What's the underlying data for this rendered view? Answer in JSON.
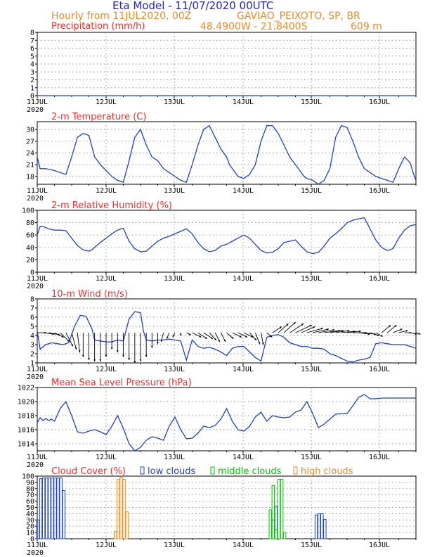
{
  "header": {
    "model_title": "Eta Model - 11/07/2020 00UTC",
    "hourly_line": "Hourly from 11JUL2020, 00Z",
    "station": "GAVIAO_PEIXOTO, SP, BR",
    "coords": "48.4900W - 21.8400S",
    "elevation": "609  m"
  },
  "colors": {
    "title": "#2323d0",
    "orange": "#f08a24",
    "panel_title": "#ff2a2a",
    "line": "#1f3fd0",
    "grid": "#8f8f8f",
    "low_clouds": "#1f3fd0",
    "middle_clouds": "#00c800",
    "high_clouds": "#f08a24"
  },
  "x_axis": {
    "day_labels": [
      "11JUL",
      "12JUL",
      "13JUL",
      "14JUL",
      "15JUL",
      "16JUL"
    ],
    "year_label": "2020"
  },
  "chart_data": [
    {
      "id": "precip",
      "type": "line",
      "title": "Precipitation (mm/h)",
      "ylim": [
        0,
        8
      ],
      "yticks": [
        0,
        1,
        2,
        3,
        4,
        5,
        6,
        7,
        8
      ],
      "xlim_hours": [
        0,
        132
      ],
      "series": [
        {
          "name": "precipitation",
          "x": [
            0,
            132
          ],
          "values": [
            0,
            0
          ]
        }
      ]
    },
    {
      "id": "temp",
      "type": "line",
      "title": "2-m Temperature (C)",
      "ylim": [
        16,
        32
      ],
      "yticks": [
        18,
        21,
        24,
        27,
        30
      ],
      "xlim_hours": [
        0,
        132
      ],
      "series": [
        {
          "name": "temperature",
          "x": [
            0,
            1,
            3,
            6,
            10,
            12,
            14,
            16,
            18,
            20,
            21,
            22,
            24,
            26,
            28,
            30,
            32,
            34,
            36,
            38,
            40,
            42,
            43,
            44,
            45,
            46,
            48,
            50,
            52,
            54,
            56,
            58,
            60,
            62,
            64,
            66,
            67,
            68,
            69,
            70,
            72,
            74,
            76,
            78,
            80,
            82,
            84,
            86,
            88,
            90,
            91,
            92,
            93,
            94,
            96,
            98,
            100,
            102,
            104,
            106,
            108,
            110,
            112,
            114,
            115,
            116,
            117,
            118,
            120,
            122,
            124,
            126,
            128,
            130,
            131,
            132
          ],
          "values": [
            23,
            20,
            20,
            19.5,
            18.5,
            23,
            28,
            29,
            28.5,
            23,
            22,
            21,
            19.5,
            18,
            17,
            16.5,
            22,
            28,
            30,
            26,
            23,
            22,
            21,
            20,
            19.5,
            19,
            18,
            17,
            16.5,
            21,
            26,
            30,
            31,
            28,
            25,
            23,
            21,
            20,
            19,
            18,
            17.5,
            18.5,
            21,
            27,
            31,
            31,
            29,
            26,
            23,
            21,
            20,
            19,
            18,
            17.5,
            17,
            16,
            17,
            20,
            28,
            31,
            30.5,
            27,
            23,
            20,
            19.5,
            19,
            18.5,
            18,
            17.5,
            17,
            16.5,
            20,
            23,
            21.5,
            19,
            17
          ]
        }
      ]
    },
    {
      "id": "rh",
      "type": "line",
      "title": "2-m Relative Humidity (%)",
      "ylim": [
        0,
        100
      ],
      "yticks": [
        0,
        20,
        40,
        60,
        80,
        100
      ],
      "xlim_hours": [
        0,
        132
      ],
      "series": [
        {
          "name": "relative_humidity",
          "x": [
            0,
            1,
            2,
            4,
            6,
            8,
            10,
            12,
            14,
            16,
            18,
            19,
            20,
            22,
            24,
            26,
            28,
            30,
            32,
            34,
            36,
            38,
            40,
            42,
            44,
            46,
            48,
            50,
            52,
            54,
            56,
            58,
            60,
            62,
            64,
            66,
            68,
            70,
            72,
            74,
            76,
            78,
            80,
            82,
            84,
            86,
            88,
            90,
            92,
            94,
            96,
            98,
            100,
            102,
            104,
            106,
            108,
            110,
            112,
            114,
            116,
            118,
            120,
            122,
            124,
            126,
            128,
            130,
            132
          ],
          "values": [
            60,
            74,
            74,
            70,
            68,
            68,
            67,
            55,
            43,
            36,
            34,
            36,
            40,
            48,
            55,
            62,
            68,
            71,
            50,
            38,
            33,
            34,
            42,
            50,
            55,
            58,
            62,
            66,
            70,
            62,
            48,
            38,
            33,
            35,
            42,
            45,
            50,
            55,
            60,
            55,
            45,
            35,
            31,
            32,
            38,
            48,
            50,
            52,
            42,
            33,
            30,
            32,
            42,
            55,
            62,
            70,
            80,
            84,
            86,
            88,
            70,
            52,
            40,
            35,
            38,
            55,
            68,
            75,
            77
          ]
        }
      ]
    },
    {
      "id": "wind",
      "type": "line",
      "title": "10-m Wind (m/s)",
      "ylim": [
        1,
        8
      ],
      "yticks": [
        1,
        2,
        3,
        4,
        5,
        6,
        7,
        8
      ],
      "xlim_hours": [
        0,
        132
      ],
      "series": [
        {
          "name": "wind_speed",
          "x": [
            0,
            1,
            3,
            5,
            7,
            9,
            11,
            13,
            15,
            17,
            19,
            20,
            22,
            24,
            26,
            28,
            30,
            32,
            34,
            36,
            37,
            38,
            40,
            42,
            44,
            46,
            48,
            50,
            52,
            54,
            55,
            56,
            58,
            60,
            62,
            64,
            66,
            68,
            70,
            72,
            74,
            76,
            78,
            80,
            82,
            84,
            86,
            88,
            90,
            92,
            94,
            96,
            98,
            100,
            102,
            104,
            106,
            108,
            110,
            112,
            114,
            116,
            118,
            120,
            122,
            124,
            126,
            128,
            130,
            132
          ],
          "values": [
            4.5,
            2.5,
            3,
            3.2,
            3.1,
            3,
            3.2,
            5,
            6.2,
            6.1,
            4.8,
            3.5,
            3.4,
            3.3,
            3.3,
            3.5,
            3.4,
            5.8,
            6.6,
            6.5,
            4.5,
            3.5,
            3.4,
            3.5,
            3.5,
            3.6,
            3.5,
            3.4,
            1.3,
            3.5,
            3.2,
            2.8,
            2.6,
            2.7,
            2.5,
            2.2,
            1.8,
            2.6,
            2.8,
            2.8,
            2.2,
            1.6,
            1.2,
            3.8,
            4,
            4.1,
            3.8,
            3.2,
            3,
            2.8,
            2.8,
            2.6,
            2.6,
            2.5,
            2,
            1.8,
            1.5,
            1.2,
            1.1,
            1.3,
            1.4,
            1.6,
            3.1,
            3.2,
            3.1,
            3,
            3,
            3,
            2.8,
            2.6
          ]
        }
      ],
      "arrows": {
        "note": "wind vector barbs drawn along the speed axis",
        "hours": [
          0,
          2,
          4,
          6,
          8,
          10,
          12,
          14,
          16,
          18,
          20,
          22,
          24,
          26,
          28,
          30,
          32,
          34,
          36,
          38,
          40,
          42,
          44,
          46,
          48,
          50,
          52,
          54,
          56,
          58,
          60,
          62,
          64,
          66,
          68,
          70,
          72,
          74,
          76,
          78,
          80,
          82,
          84,
          86,
          88,
          90,
          92,
          94,
          96,
          98,
          100,
          102,
          104,
          106,
          108,
          110,
          112,
          114,
          116,
          118,
          120,
          122,
          124,
          126,
          128,
          130,
          132
        ],
        "u": [
          2,
          2.5,
          2.5,
          2,
          2,
          1.5,
          1,
          0.5,
          0,
          0,
          0,
          0,
          0,
          0,
          0,
          0,
          0,
          0,
          0,
          0,
          0,
          0,
          -0.5,
          -0.5,
          -0.5,
          0,
          1,
          2,
          2,
          2,
          1.5,
          1,
          1,
          1.5,
          2,
          2,
          2,
          1.5,
          1,
          0.5,
          1.2,
          2,
          2.2,
          2.5,
          3,
          3.5,
          3,
          3.5,
          3.5,
          3.5,
          3.5,
          3,
          3,
          3,
          3,
          3,
          2.5,
          2.5,
          2,
          1.5,
          2,
          2,
          2,
          2,
          1.5,
          1.5,
          1
        ],
        "v": [
          0,
          -0.2,
          -0.3,
          -0.6,
          -1.2,
          -1.8,
          -2.2,
          -2.6,
          -3.2,
          -3.6,
          -3.8,
          -3.8,
          -3.2,
          -2.2,
          -2.6,
          -3.2,
          -3.6,
          -4,
          -3.8,
          -3.2,
          -2,
          -1.5,
          -1.2,
          -0.8,
          -0.6,
          -0.4,
          -0.3,
          -0.6,
          -0.8,
          -0.8,
          -1,
          -1.2,
          -1.2,
          -0.8,
          -0.6,
          -0.6,
          -0.6,
          -1,
          -1.5,
          -1.6,
          -0.6,
          0.8,
          1.2,
          1.4,
          1.2,
          1,
          0.8,
          0.6,
          0.5,
          0.4,
          0.3,
          0.3,
          0.3,
          0.2,
          0.2,
          0,
          -0.2,
          -0.2,
          -0.4,
          -0.5,
          1,
          1,
          0.5,
          0.3,
          0,
          -0.2,
          -0.2
        ]
      }
    },
    {
      "id": "mslp",
      "type": "line",
      "title": "Mean Sea Level Pressure (hPa)",
      "ylim": [
        1013,
        1022
      ],
      "yticks": [
        1014,
        1016,
        1018,
        1020,
        1022
      ],
      "xlim_hours": [
        0,
        132
      ],
      "series": [
        {
          "name": "pressure",
          "x": [
            0,
            1,
            2,
            3,
            4,
            5,
            6,
            8,
            10,
            12,
            14,
            16,
            18,
            20,
            22,
            24,
            26,
            28,
            30,
            32,
            34,
            36,
            38,
            40,
            42,
            44,
            46,
            48,
            50,
            52,
            54,
            56,
            58,
            60,
            62,
            64,
            66,
            68,
            70,
            72,
            74,
            76,
            78,
            80,
            82,
            84,
            86,
            88,
            90,
            92,
            94,
            96,
            98,
            100,
            102,
            104,
            106,
            108,
            110,
            112,
            114,
            116,
            118,
            120,
            122,
            124,
            126,
            128,
            130,
            132
          ],
          "values": [
            1017,
            1017.7,
            1017.3,
            1017.6,
            1017.3,
            1017.5,
            1017.2,
            1019,
            1020,
            1018,
            1015.7,
            1015.5,
            1015.8,
            1016,
            1015.7,
            1015.3,
            1016.5,
            1018,
            1016.2,
            1014,
            1013,
            1013.5,
            1014.5,
            1015,
            1014.8,
            1014.5,
            1016.5,
            1017.8,
            1016,
            1014.7,
            1014.8,
            1015.5,
            1016.5,
            1016.3,
            1016.6,
            1017.5,
            1019,
            1017.2,
            1016,
            1015.8,
            1016.5,
            1017.8,
            1018.5,
            1017.2,
            1018,
            1017.8,
            1017.7,
            1017.8,
            1018.5,
            1018.8,
            1020,
            1018.3,
            1016.3,
            1016.8,
            1017.5,
            1018.2,
            1018.3,
            1018.3,
            1019.4,
            1020.6,
            1021,
            1020.4,
            1020.4,
            1020.5,
            1020.5,
            1020.5,
            1020.5,
            1020.5,
            1020.5,
            1020.5
          ]
        }
      ]
    },
    {
      "id": "cloud",
      "type": "bar",
      "title": "Cloud Cover (%)",
      "ylim": [
        0,
        100
      ],
      "yticks": [
        0,
        10,
        20,
        30,
        40,
        50,
        60,
        70,
        80,
        90,
        100
      ],
      "xlim_hours": [
        0,
        132
      ],
      "legend": [
        "low clouds",
        "middle clouds",
        "high clouds"
      ],
      "series": [
        {
          "name": "low clouds",
          "hours": [
            0,
            1,
            2,
            3,
            4,
            5,
            6,
            7,
            8,
            9,
            82,
            83,
            96,
            97,
            98,
            99,
            100
          ],
          "values": [
            30,
            96,
            97,
            97,
            97,
            97,
            97,
            97,
            97,
            77,
            30,
            52,
            0,
            38,
            40,
            40,
            31
          ]
        },
        {
          "name": "middle clouds",
          "hours": [
            81,
            82,
            83,
            84,
            85,
            86
          ],
          "values": [
            46,
            85,
            15,
            95,
            95,
            10
          ]
        },
        {
          "name": "high clouds",
          "hours": [
            27,
            28,
            29,
            30,
            31
          ],
          "values": [
            12,
            95,
            98,
            95,
            43
          ]
        }
      ]
    }
  ]
}
